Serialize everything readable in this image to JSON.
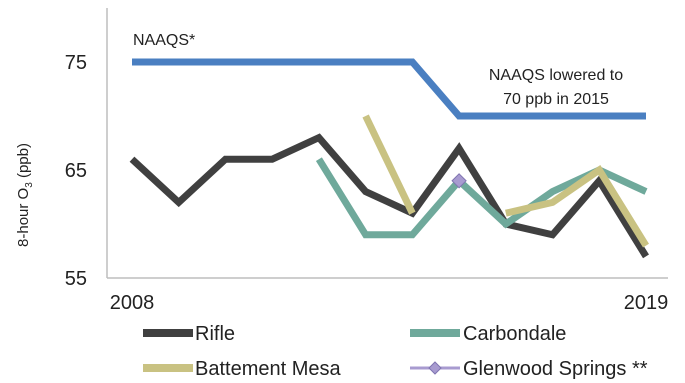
{
  "chart_data": {
    "type": "line",
    "x": [
      2008,
      2009,
      2010,
      2011,
      2012,
      2013,
      2014,
      2015,
      2016,
      2017,
      2018,
      2019
    ],
    "xlim": [
      2008,
      2019
    ],
    "ylim": [
      55,
      80
    ],
    "x_tick_labels": [
      "2008",
      "2019"
    ],
    "y_ticks": [
      55,
      65,
      75
    ],
    "y_tick_labels": [
      "55",
      "65",
      "75"
    ],
    "ylabel_main": "8-hour O",
    "ylabel_sub": "3",
    "ylabel_unit": " (ppb)",
    "series": [
      {
        "name": "NAAQS*",
        "color": "#4a7fc1",
        "values": [
          75,
          75,
          75,
          75,
          75,
          75,
          75,
          70,
          70,
          70,
          70,
          70
        ],
        "in_legend": false
      },
      {
        "name": "Rifle",
        "color": "#404040",
        "values": [
          66,
          62,
          66,
          66,
          68,
          63,
          61,
          67,
          60,
          59,
          64,
          57
        ],
        "in_legend": true
      },
      {
        "name": "Carbondale",
        "color": "#6fa99b",
        "values": [
          null,
          null,
          null,
          null,
          66,
          59,
          59,
          64,
          60,
          63,
          65,
          63
        ],
        "in_legend": true
      },
      {
        "name": "Battement Mesa",
        "color": "#c9c282",
        "values": [
          null,
          null,
          null,
          null,
          null,
          70,
          61,
          null,
          61,
          62,
          65,
          58
        ],
        "in_legend": true
      },
      {
        "name": "Glenwood Springs **",
        "color": "#a89bd0",
        "values": [
          null,
          null,
          null,
          null,
          null,
          null,
          null,
          64,
          null,
          null,
          null,
          null
        ],
        "in_legend": true,
        "marker": "diamond"
      }
    ],
    "annotations": {
      "naaqs_label": "NAAQS*",
      "lowered_line1": "NAAQS lowered to",
      "lowered_line2": "70 ppb in 2015"
    },
    "legend": {
      "placement": "bottom",
      "columns": 2
    }
  }
}
